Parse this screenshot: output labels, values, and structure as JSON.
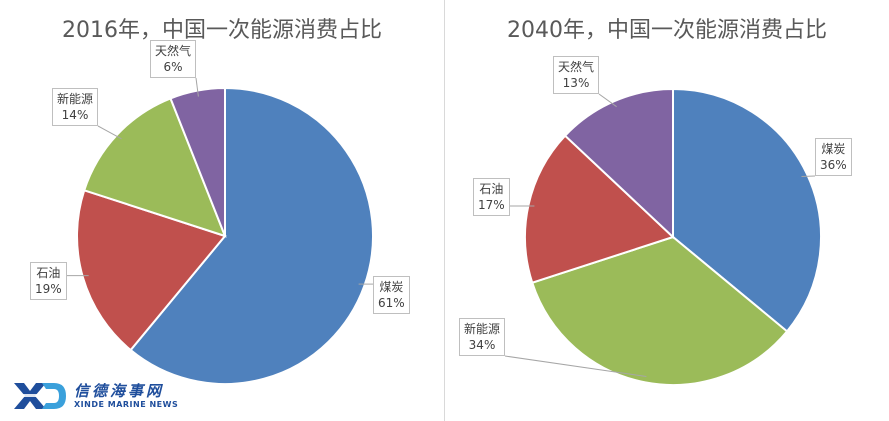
{
  "chart_data": [
    {
      "type": "pie",
      "title": "2016年，中国一次能源消费占比",
      "slices": [
        {
          "name": "煤炭",
          "value": 61,
          "label": "61%",
          "color": "#4f81bd"
        },
        {
          "name": "石油",
          "value": 19,
          "label": "19%",
          "color": "#c0504d"
        },
        {
          "name": "新能源",
          "value": 14,
          "label": "14%",
          "color": "#9bbb59"
        },
        {
          "name": "天然气",
          "value": 6,
          "label": "6%",
          "color": "#8064a2"
        }
      ],
      "start_angle_deg": 0,
      "direction": "clockwise"
    },
    {
      "type": "pie",
      "title": "2040年，中国一次能源消费占比",
      "slices": [
        {
          "name": "煤炭",
          "value": 36,
          "label": "36%",
          "color": "#4f81bd"
        },
        {
          "name": "新能源",
          "value": 34,
          "label": "34%",
          "color": "#9bbb59"
        },
        {
          "name": "石油",
          "value": 17,
          "label": "17%",
          "color": "#c0504d"
        },
        {
          "name": "天然气",
          "value": 13,
          "label": "13%",
          "color": "#8064a2"
        }
      ],
      "start_angle_deg": 0,
      "direction": "clockwise"
    }
  ],
  "watermark": {
    "name_cn": "信德海事网",
    "name_en": "XINDE MARINE NEWS",
    "colors": {
      "primary": "#1f4e9c",
      "accent": "#3aa0db"
    }
  }
}
